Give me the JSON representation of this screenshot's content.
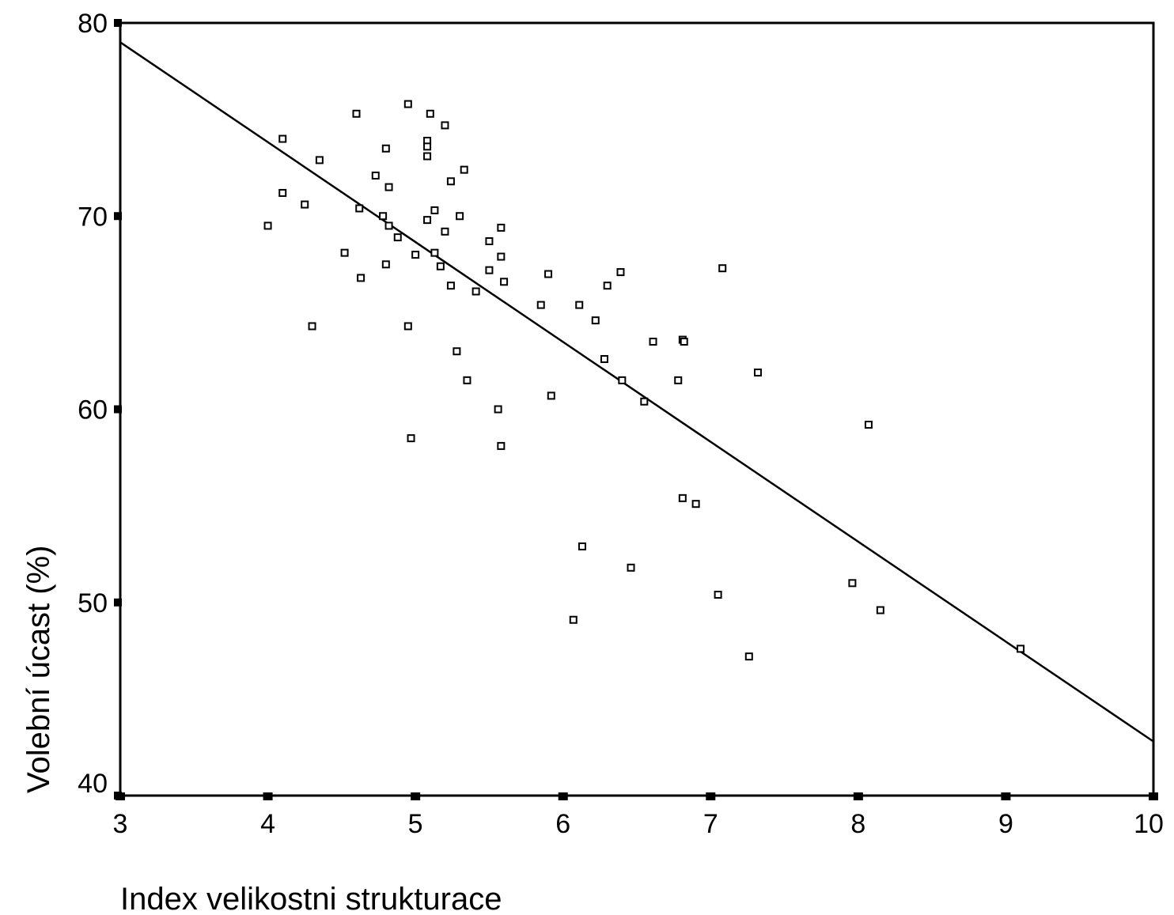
{
  "chart_data": {
    "type": "scatter",
    "title": "",
    "xlabel": "Index velikostni strukturace",
    "ylabel": "Volební úcast (%)",
    "xlim": [
      3,
      10
    ],
    "ylim": [
      40,
      80
    ],
    "xticks": [
      "3",
      "4",
      "5",
      "6",
      "7",
      "8",
      "9",
      "10"
    ],
    "yticks": [
      "40",
      "50",
      "60",
      "70",
      "80"
    ],
    "grid": false,
    "legend": "none",
    "colors": {
      "axis": "#000000",
      "marker": "#000000",
      "line": "#000000"
    },
    "series": [
      {
        "marker": "hollow-square",
        "points": [
          [
            4.0,
            69.5
          ],
          [
            4.1,
            74.0
          ],
          [
            4.1,
            71.2
          ],
          [
            4.25,
            70.6
          ],
          [
            4.3,
            64.3
          ],
          [
            4.35,
            72.9
          ],
          [
            4.52,
            68.1
          ],
          [
            4.6,
            75.3
          ],
          [
            4.62,
            70.4
          ],
          [
            4.63,
            66.8
          ],
          [
            4.73,
            72.1
          ],
          [
            4.78,
            70.0
          ],
          [
            4.8,
            73.5
          ],
          [
            4.8,
            67.5
          ],
          [
            4.82,
            71.5
          ],
          [
            4.82,
            69.5
          ],
          [
            4.88,
            68.9
          ],
          [
            4.95,
            75.8
          ],
          [
            4.95,
            64.3
          ],
          [
            4.97,
            58.5
          ],
          [
            5.0,
            68.0
          ],
          [
            5.08,
            73.9
          ],
          [
            5.08,
            73.6
          ],
          [
            5.08,
            73.1
          ],
          [
            5.08,
            69.8
          ],
          [
            5.1,
            75.3
          ],
          [
            5.13,
            70.3
          ],
          [
            5.13,
            68.1
          ],
          [
            5.17,
            67.4
          ],
          [
            5.2,
            74.7
          ],
          [
            5.2,
            69.2
          ],
          [
            5.24,
            71.8
          ],
          [
            5.24,
            66.4
          ],
          [
            5.28,
            63.0
          ],
          [
            5.3,
            70.0
          ],
          [
            5.33,
            72.4
          ],
          [
            5.35,
            61.5
          ],
          [
            5.41,
            66.1
          ],
          [
            5.5,
            68.7
          ],
          [
            5.5,
            67.2
          ],
          [
            5.56,
            60.0
          ],
          [
            5.58,
            69.4
          ],
          [
            5.58,
            67.9
          ],
          [
            5.58,
            58.1
          ],
          [
            5.6,
            66.6
          ],
          [
            5.85,
            65.4
          ],
          [
            5.9,
            67.0
          ],
          [
            5.92,
            60.7
          ],
          [
            6.07,
            49.1
          ],
          [
            6.11,
            65.4
          ],
          [
            6.13,
            52.9
          ],
          [
            6.22,
            64.6
          ],
          [
            6.28,
            62.6
          ],
          [
            6.3,
            66.4
          ],
          [
            6.39,
            67.1
          ],
          [
            6.4,
            61.5
          ],
          [
            6.46,
            51.8
          ],
          [
            6.55,
            60.4
          ],
          [
            6.61,
            63.5
          ],
          [
            6.78,
            61.5
          ],
          [
            6.81,
            63.6
          ],
          [
            6.82,
            63.5
          ],
          [
            6.81,
            55.4
          ],
          [
            6.9,
            55.1
          ],
          [
            7.05,
            50.4
          ],
          [
            7.08,
            67.3
          ],
          [
            7.26,
            47.2
          ],
          [
            7.32,
            61.9
          ],
          [
            7.96,
            51.0
          ],
          [
            8.07,
            59.2
          ],
          [
            8.15,
            49.6
          ],
          [
            9.1,
            47.6
          ]
        ]
      }
    ],
    "trendline": {
      "x": [
        3,
        10
      ],
      "y": [
        79.0,
        42.8
      ]
    }
  }
}
